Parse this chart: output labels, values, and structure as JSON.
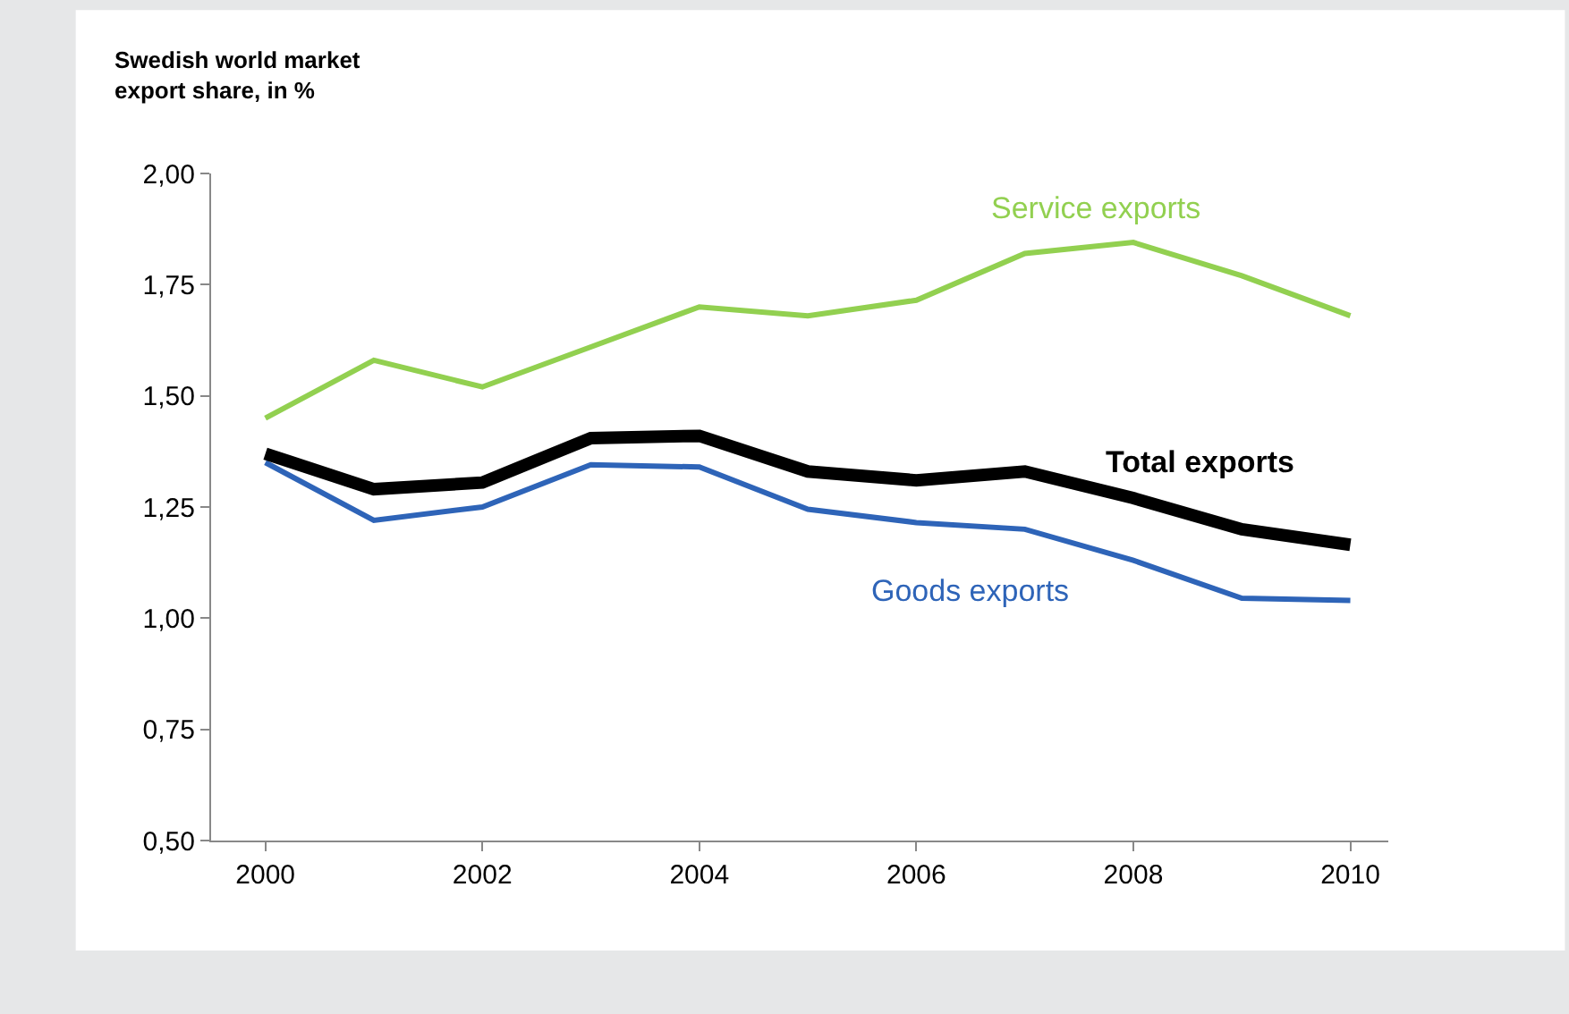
{
  "chart_data": {
    "type": "line",
    "ylabel": "Swedish world market\nexport share, in %",
    "x": [
      2000,
      2001,
      2002,
      2003,
      2004,
      2005,
      2006,
      2007,
      2008,
      2009,
      2010
    ],
    "series": [
      {
        "name": "Service exports",
        "color": "#92d050",
        "values": [
          1.45,
          1.58,
          1.52,
          1.61,
          1.7,
          1.68,
          1.715,
          1.82,
          1.845,
          1.77,
          1.68
        ]
      },
      {
        "name": "Goods exports",
        "color": "#2e64b8",
        "values": [
          1.35,
          1.22,
          1.25,
          1.345,
          1.34,
          1.245,
          1.215,
          1.2,
          1.13,
          1.045,
          1.04
        ]
      },
      {
        "name": "Total exports",
        "color": "#000000",
        "values": [
          1.37,
          1.29,
          1.305,
          1.405,
          1.41,
          1.33,
          1.31,
          1.33,
          1.27,
          1.2,
          1.165
        ]
      }
    ],
    "xlim": [
      1999.5,
      2010.35
    ],
    "xticks": [
      2000,
      2002,
      2004,
      2006,
      2008,
      2010
    ],
    "ylim": [
      0.5,
      2.0
    ],
    "yticks": [
      {
        "value": 0.5,
        "label": "0,50"
      },
      {
        "value": 0.75,
        "label": "0,75"
      },
      {
        "value": 1.0,
        "label": "1,00"
      },
      {
        "value": 1.25,
        "label": "1,25"
      },
      {
        "value": 1.5,
        "label": "1,50"
      },
      {
        "value": 1.75,
        "label": "1,75"
      },
      {
        "value": 2.0,
        "label": "2,00"
      }
    ],
    "legend": false,
    "marker": "none",
    "line_style": "solid"
  }
}
